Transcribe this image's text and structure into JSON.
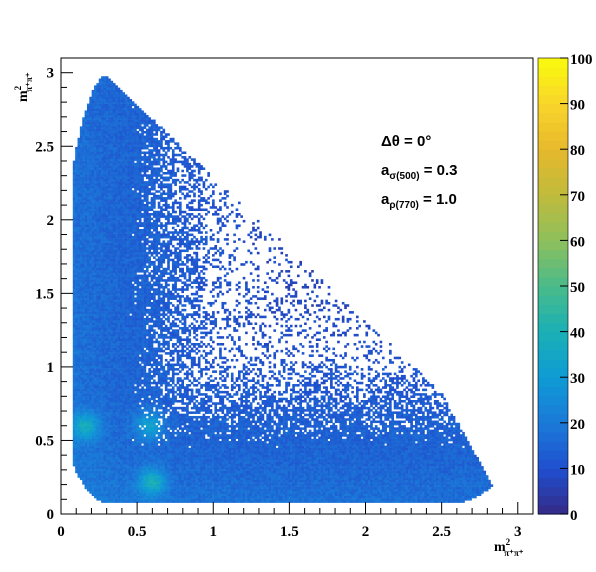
{
  "chart_data": {
    "type": "heatmap",
    "title": "",
    "xlabel": {
      "base": "m",
      "sup": "2",
      "sub": "π⁺π⁺"
    },
    "ylabel": {
      "base": "m",
      "sup": "2",
      "sub": "π⁺π⁺"
    },
    "xlim": [
      0,
      3.1
    ],
    "ylim": [
      0,
      3.1
    ],
    "x_ticks": [
      "0",
      "0.5",
      "1",
      "1.5",
      "2",
      "2.5",
      "3"
    ],
    "y_ticks": [
      "0",
      "0.5",
      "1",
      "1.5",
      "2",
      "2.5",
      "3"
    ],
    "z_range": [
      0,
      100
    ],
    "z_ticks": [
      "0",
      "10",
      "20",
      "30",
      "40",
      "50",
      "60",
      "70",
      "80",
      "90",
      "100"
    ],
    "palette": [
      "#352a87",
      "#1f4fcf",
      "#1a7ad8",
      "#0f9bd5",
      "#1ab0b5",
      "#49bb8a",
      "#8ebf5c",
      "#c0bb3c",
      "#e6b92c",
      "#f9d52a",
      "#f9fb0e"
    ],
    "annotations": [
      {
        "main": "Δθ = 0°",
        "sub": "",
        "tail": ""
      },
      {
        "main": "a",
        "sub": "σ(500)",
        "tail": " = 0.3"
      },
      {
        "main": "a",
        "sub": "ρ(770)",
        "tail": " = 1.0"
      }
    ],
    "dalitz_boundary": {
      "description": "Kinematically allowed region, populated densely",
      "x_min": 0.08,
      "x_max": 2.95,
      "y_min": 0.08,
      "y_max": 2.98
    },
    "hotspots": [
      {
        "x": 0.6,
        "y": 0.22,
        "level": 22
      },
      {
        "x": 0.16,
        "y": 0.6,
        "level": 20
      },
      {
        "x": 0.58,
        "y": 0.6,
        "level": 18
      }
    ],
    "grid": false,
    "legend": "colorbar-right"
  }
}
